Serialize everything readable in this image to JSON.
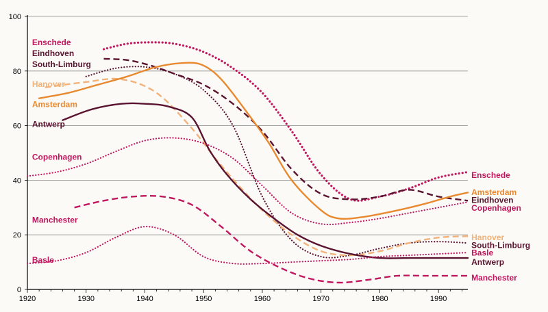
{
  "chart_data": {
    "type": "line",
    "title": "",
    "xlabel": "",
    "ylabel": "",
    "xlim": [
      1920,
      1995
    ],
    "ylim": [
      0,
      100
    ],
    "xticks": [
      1920,
      1930,
      1940,
      1950,
      1960,
      1970,
      1980,
      1990
    ],
    "yticks": [
      0,
      20,
      40,
      60,
      80,
      100
    ],
    "grid": "horizontal",
    "legend": "none (series labelled at line ends)",
    "series": [
      {
        "name": "Enschede",
        "color": "#c1175f",
        "dash": "dotted-heavy",
        "x": [
          1933,
          1937,
          1941,
          1945,
          1950,
          1955,
          1960,
          1965,
          1970,
          1975,
          1980,
          1985,
          1990,
          1995
        ],
        "y": [
          88,
          90,
          90.5,
          90,
          87,
          81,
          72,
          58,
          42,
          33,
          34,
          37,
          41,
          43
        ]
      },
      {
        "name": "Eindhoven",
        "color": "#5a1430",
        "dash": "dashed",
        "x": [
          1933,
          1937,
          1941,
          1945,
          1950,
          1955,
          1960,
          1965,
          1970,
          1975,
          1980,
          1985,
          1990,
          1995
        ],
        "y": [
          84.5,
          84,
          82,
          79,
          75,
          68,
          58,
          44,
          35,
          33,
          34,
          36.5,
          34,
          32.5
        ]
      },
      {
        "name": "South-Limburg",
        "color": "#5a1430",
        "dash": "dotted",
        "x": [
          1930,
          1935,
          1940,
          1945,
          1950,
          1955,
          1960,
          1965,
          1970,
          1975,
          1980,
          1985,
          1990,
          1995
        ],
        "y": [
          78,
          81,
          81.5,
          79,
          73,
          60,
          34,
          18,
          12,
          12.5,
          15,
          17,
          17.5,
          17
        ]
      },
      {
        "name": "Hanover",
        "color": "#f2b27a",
        "dash": "dashed",
        "x": [
          1923,
          1930,
          1936,
          1942,
          1948,
          1952,
          1956,
          1960,
          1965,
          1970,
          1975,
          1980,
          1985,
          1990,
          1995
        ],
        "y": [
          74,
          76,
          77,
          72,
          59,
          48,
          38,
          29,
          20,
          14,
          12.5,
          14,
          17,
          19,
          19.5
        ]
      },
      {
        "name": "Amsterdam",
        "color": "#e9892f",
        "dash": "solid",
        "x": [
          1922,
          1927,
          1932,
          1937,
          1942,
          1947,
          1950,
          1953,
          1957,
          1961,
          1965,
          1970,
          1973,
          1977,
          1982,
          1987,
          1992,
          1995
        ],
        "y": [
          70,
          72,
          75,
          78,
          81.5,
          83,
          82,
          77,
          66,
          54,
          40,
          29,
          26,
          26.5,
          28.5,
          31,
          34,
          35.5
        ]
      },
      {
        "name": "Antwerp",
        "color": "#5a1430",
        "dash": "solid",
        "x": [
          1926,
          1931,
          1936,
          1940,
          1944,
          1948,
          1951,
          1954,
          1958,
          1962,
          1966,
          1970,
          1975,
          1980,
          1985,
          1990,
          1995
        ],
        "y": [
          62,
          66,
          68,
          68,
          67,
          63,
          51,
          42,
          33,
          26,
          20,
          16,
          13,
          11.5,
          11.5,
          11.5,
          11.5
        ]
      },
      {
        "name": "Copenhagen",
        "color": "#c1175f",
        "dash": "dotted",
        "x": [
          1920,
          1925,
          1930,
          1935,
          1940,
          1945,
          1950,
          1955,
          1960,
          1965,
          1970,
          1975,
          1980,
          1985,
          1990,
          1995
        ],
        "y": [
          41.5,
          43,
          46,
          50.5,
          54.5,
          55.5,
          53.5,
          48,
          38,
          28,
          24,
          24.5,
          26,
          28,
          30,
          32
        ]
      },
      {
        "name": "Manchester",
        "color": "#c1175f",
        "dash": "dashed",
        "x": [
          1928,
          1933,
          1938,
          1943,
          1948,
          1953,
          1958,
          1963,
          1968,
          1973,
          1978,
          1983,
          1988,
          1995
        ],
        "y": [
          30,
          32.5,
          34,
          34,
          31,
          23,
          14,
          8,
          4,
          2.5,
          3.5,
          5,
          5,
          5
        ]
      },
      {
        "name": "Basle",
        "color": "#c1175f",
        "dash": "dotted",
        "x": [
          1920,
          1925,
          1930,
          1935,
          1940,
          1945,
          1950,
          1955,
          1960,
          1965,
          1970,
          1975,
          1980,
          1985,
          1990,
          1995
        ],
        "y": [
          9.5,
          10.5,
          13.5,
          19,
          23,
          20,
          12,
          9.5,
          9.5,
          10,
          10.5,
          11,
          12,
          12.5,
          13,
          13.5
        ]
      }
    ],
    "labels_left": [
      {
        "text": "Enschede",
        "color": "#c1175f",
        "x": 1920.8,
        "y": 90.5
      },
      {
        "text": "Eindhoven",
        "color": "#5a1430",
        "x": 1920.8,
        "y": 86.5
      },
      {
        "text": "South-Limburg",
        "color": "#5a1430",
        "x": 1920.8,
        "y": 82.5
      },
      {
        "text": "Hanover",
        "color": "#f2b27a",
        "x": 1920.8,
        "y": 75.2
      },
      {
        "text": "Amsterdam",
        "color": "#e9892f",
        "x": 1920.8,
        "y": 67.8
      },
      {
        "text": "Antwerp",
        "color": "#5a1430",
        "x": 1920.8,
        "y": 60.5
      },
      {
        "text": "Copenhagen",
        "color": "#c1175f",
        "x": 1920.8,
        "y": 48.5
      },
      {
        "text": "Manchester",
        "color": "#c1175f",
        "x": 1920.8,
        "y": 25.5
      },
      {
        "text": "Basle",
        "color": "#c1175f",
        "x": 1920.8,
        "y": 10.8
      }
    ],
    "labels_right": [
      {
        "text": "Enschede",
        "color": "#c1175f",
        "x": 1995.6,
        "y": 41.8
      },
      {
        "text": "Amsterdam",
        "color": "#e9892f",
        "x": 1995.6,
        "y": 35.6
      },
      {
        "text": "Eindhoven",
        "color": "#5a1430",
        "x": 1995.6,
        "y": 32.7
      },
      {
        "text": "Copenhagen",
        "color": "#c1175f",
        "x": 1995.6,
        "y": 29.8
      },
      {
        "text": "Hanover",
        "color": "#f2b27a",
        "x": 1995.6,
        "y": 19.0
      },
      {
        "text": "South-Limburg",
        "color": "#5a1430",
        "x": 1995.6,
        "y": 16.2
      },
      {
        "text": "Basle",
        "color": "#c1175f",
        "x": 1995.6,
        "y": 13.4
      },
      {
        "text": "Antwerp",
        "color": "#5a1430",
        "x": 1995.6,
        "y": 10.0
      },
      {
        "text": "Manchester",
        "color": "#c1175f",
        "x": 1995.6,
        "y": 4.2
      }
    ]
  }
}
